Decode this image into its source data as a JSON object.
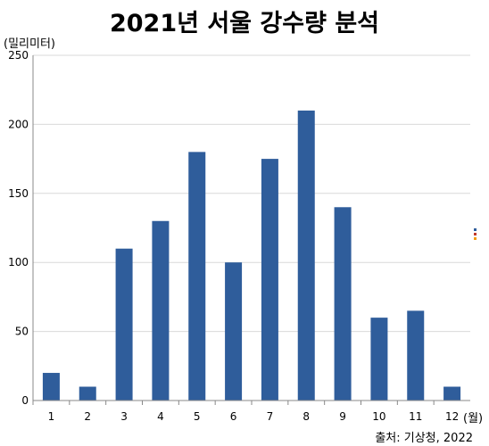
{
  "title": "2021년 서울 강수량 분석",
  "source": "출처: 기상청, 2022",
  "colors": {
    "bar": "#2f5d9b",
    "grid": "#d9d9d9",
    "axis": "#888888",
    "legend": [
      "#2f5d9b",
      "#c0392b",
      "#f39c12"
    ]
  },
  "chart_data": {
    "type": "bar",
    "title": "2021년 서울 강수량 분석",
    "xlabel": "(월)",
    "ylabel": "(밀리미터)",
    "categories": [
      "1",
      "2",
      "3",
      "4",
      "5",
      "6",
      "7",
      "8",
      "9",
      "10",
      "11",
      "12"
    ],
    "values": [
      20,
      10,
      110,
      130,
      180,
      100,
      175,
      210,
      140,
      60,
      65,
      10
    ],
    "ylim": [
      0,
      250
    ],
    "yticks": [
      0,
      50,
      100,
      150,
      200,
      250
    ],
    "grid": true,
    "legend_position": "right"
  }
}
